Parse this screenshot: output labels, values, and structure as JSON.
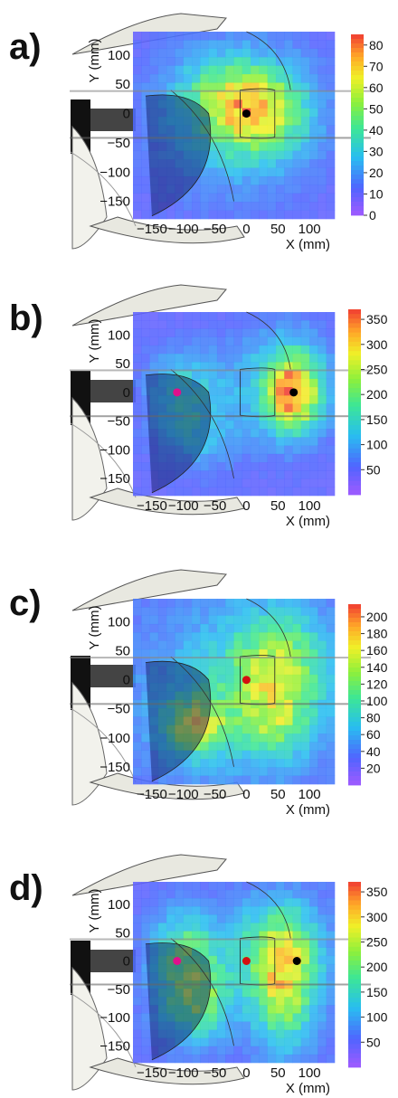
{
  "chart_data": [
    {
      "panel_label": "a)",
      "type": "heatmap",
      "xlabel": "X (mm)",
      "ylabel": "Y (mm)",
      "xlim": [
        -180,
        140
      ],
      "ylim": [
        -180,
        140
      ],
      "x_ticks": [
        -150,
        -100,
        -50,
        0,
        50,
        100
      ],
      "y_ticks": [
        100,
        50,
        0,
        -50,
        -100,
        -150
      ],
      "colorbar": {
        "min": 0,
        "max": 85,
        "ticks": [
          80,
          70,
          60,
          50,
          40,
          30,
          20,
          10,
          0
        ]
      },
      "hotspots": [
        {
          "x": 10,
          "y": 5,
          "sx": 55,
          "sy": 50,
          "amp": 48
        },
        {
          "x": -20,
          "y": -10,
          "sx": 110,
          "sy": 110,
          "amp": 18
        },
        {
          "x": -50,
          "y": 40,
          "sx": 50,
          "sy": 40,
          "amp": 10
        }
      ],
      "base": 8,
      "markers": [
        {
          "x": 0,
          "y": 0,
          "color": "#000000"
        }
      ]
    },
    {
      "panel_label": "b)",
      "type": "heatmap",
      "xlabel": "X (mm)",
      "ylabel": "Y (mm)",
      "xlim": [
        -180,
        140
      ],
      "ylim": [
        -180,
        140
      ],
      "x_ticks": [
        -150,
        -100,
        -50,
        0,
        50,
        100
      ],
      "y_ticks": [
        100,
        50,
        0,
        -50,
        -100,
        -150
      ],
      "colorbar": {
        "min": 0,
        "max": 370,
        "ticks": [
          350,
          300,
          250,
          200,
          150,
          100,
          50
        ]
      },
      "hotspots": [
        {
          "x": 75,
          "y": 0,
          "sx": 28,
          "sy": 45,
          "amp": 240
        },
        {
          "x": 55,
          "y": 15,
          "sx": 60,
          "sy": 70,
          "amp": 90
        },
        {
          "x": -100,
          "y": 5,
          "sx": 40,
          "sy": 50,
          "amp": 90
        },
        {
          "x": -75,
          "y": -75,
          "sx": 45,
          "sy": 45,
          "amp": 60
        }
      ],
      "base": 45,
      "markers": [
        {
          "x": 75,
          "y": 0,
          "color": "#000000"
        },
        {
          "x": -110,
          "y": 0,
          "color": "#e0108c"
        }
      ]
    },
    {
      "panel_label": "c)",
      "type": "heatmap",
      "xlabel": "X (mm)",
      "ylabel": "Y (mm)",
      "xlim": [
        -180,
        140
      ],
      "ylim": [
        -180,
        140
      ],
      "x_ticks": [
        -150,
        -100,
        -50,
        0,
        50,
        100
      ],
      "y_ticks": [
        100,
        50,
        0,
        -50,
        -100,
        -150
      ],
      "colorbar": {
        "min": 0,
        "max": 215,
        "ticks": [
          200,
          180,
          160,
          140,
          120,
          100,
          80,
          60,
          40,
          20
        ]
      },
      "hotspots": [
        {
          "x": -80,
          "y": -80,
          "sx": 35,
          "sy": 35,
          "amp": 100
        },
        {
          "x": 50,
          "y": 10,
          "sx": 50,
          "sy": 70,
          "amp": 95
        },
        {
          "x": -20,
          "y": -20,
          "sx": 110,
          "sy": 110,
          "amp": 45
        },
        {
          "x": 40,
          "y": -85,
          "sx": 35,
          "sy": 35,
          "amp": 40
        }
      ],
      "base": 30,
      "markers": [
        {
          "x": 0,
          "y": 0,
          "color": "#d41010"
        }
      ]
    },
    {
      "panel_label": "d)",
      "type": "heatmap",
      "xlabel": "X (mm)",
      "ylabel": "Y (mm)",
      "xlim": [
        -180,
        140
      ],
      "ylim": [
        -180,
        140
      ],
      "x_ticks": [
        -150,
        -100,
        -50,
        0,
        50,
        100
      ],
      "y_ticks": [
        100,
        50,
        0,
        -50,
        -100,
        -150
      ],
      "colorbar": {
        "min": 0,
        "max": 370,
        "ticks": [
          350,
          300,
          250,
          200,
          150,
          100,
          50
        ]
      },
      "hotspots": [
        {
          "x": 60,
          "y": -40,
          "sx": 35,
          "sy": 80,
          "amp": 190
        },
        {
          "x": -80,
          "y": -70,
          "sx": 40,
          "sy": 50,
          "amp": 160
        },
        {
          "x": -100,
          "y": 20,
          "sx": 35,
          "sy": 50,
          "amp": 120
        },
        {
          "x": 40,
          "y": 20,
          "sx": 60,
          "sy": 60,
          "amp": 100
        }
      ],
      "base": 50,
      "markers": [
        {
          "x": 0,
          "y": 0,
          "color": "#d41010"
        },
        {
          "x": 80,
          "y": 0,
          "color": "#000000"
        },
        {
          "x": -110,
          "y": 0,
          "color": "#e0108c"
        }
      ]
    }
  ]
}
